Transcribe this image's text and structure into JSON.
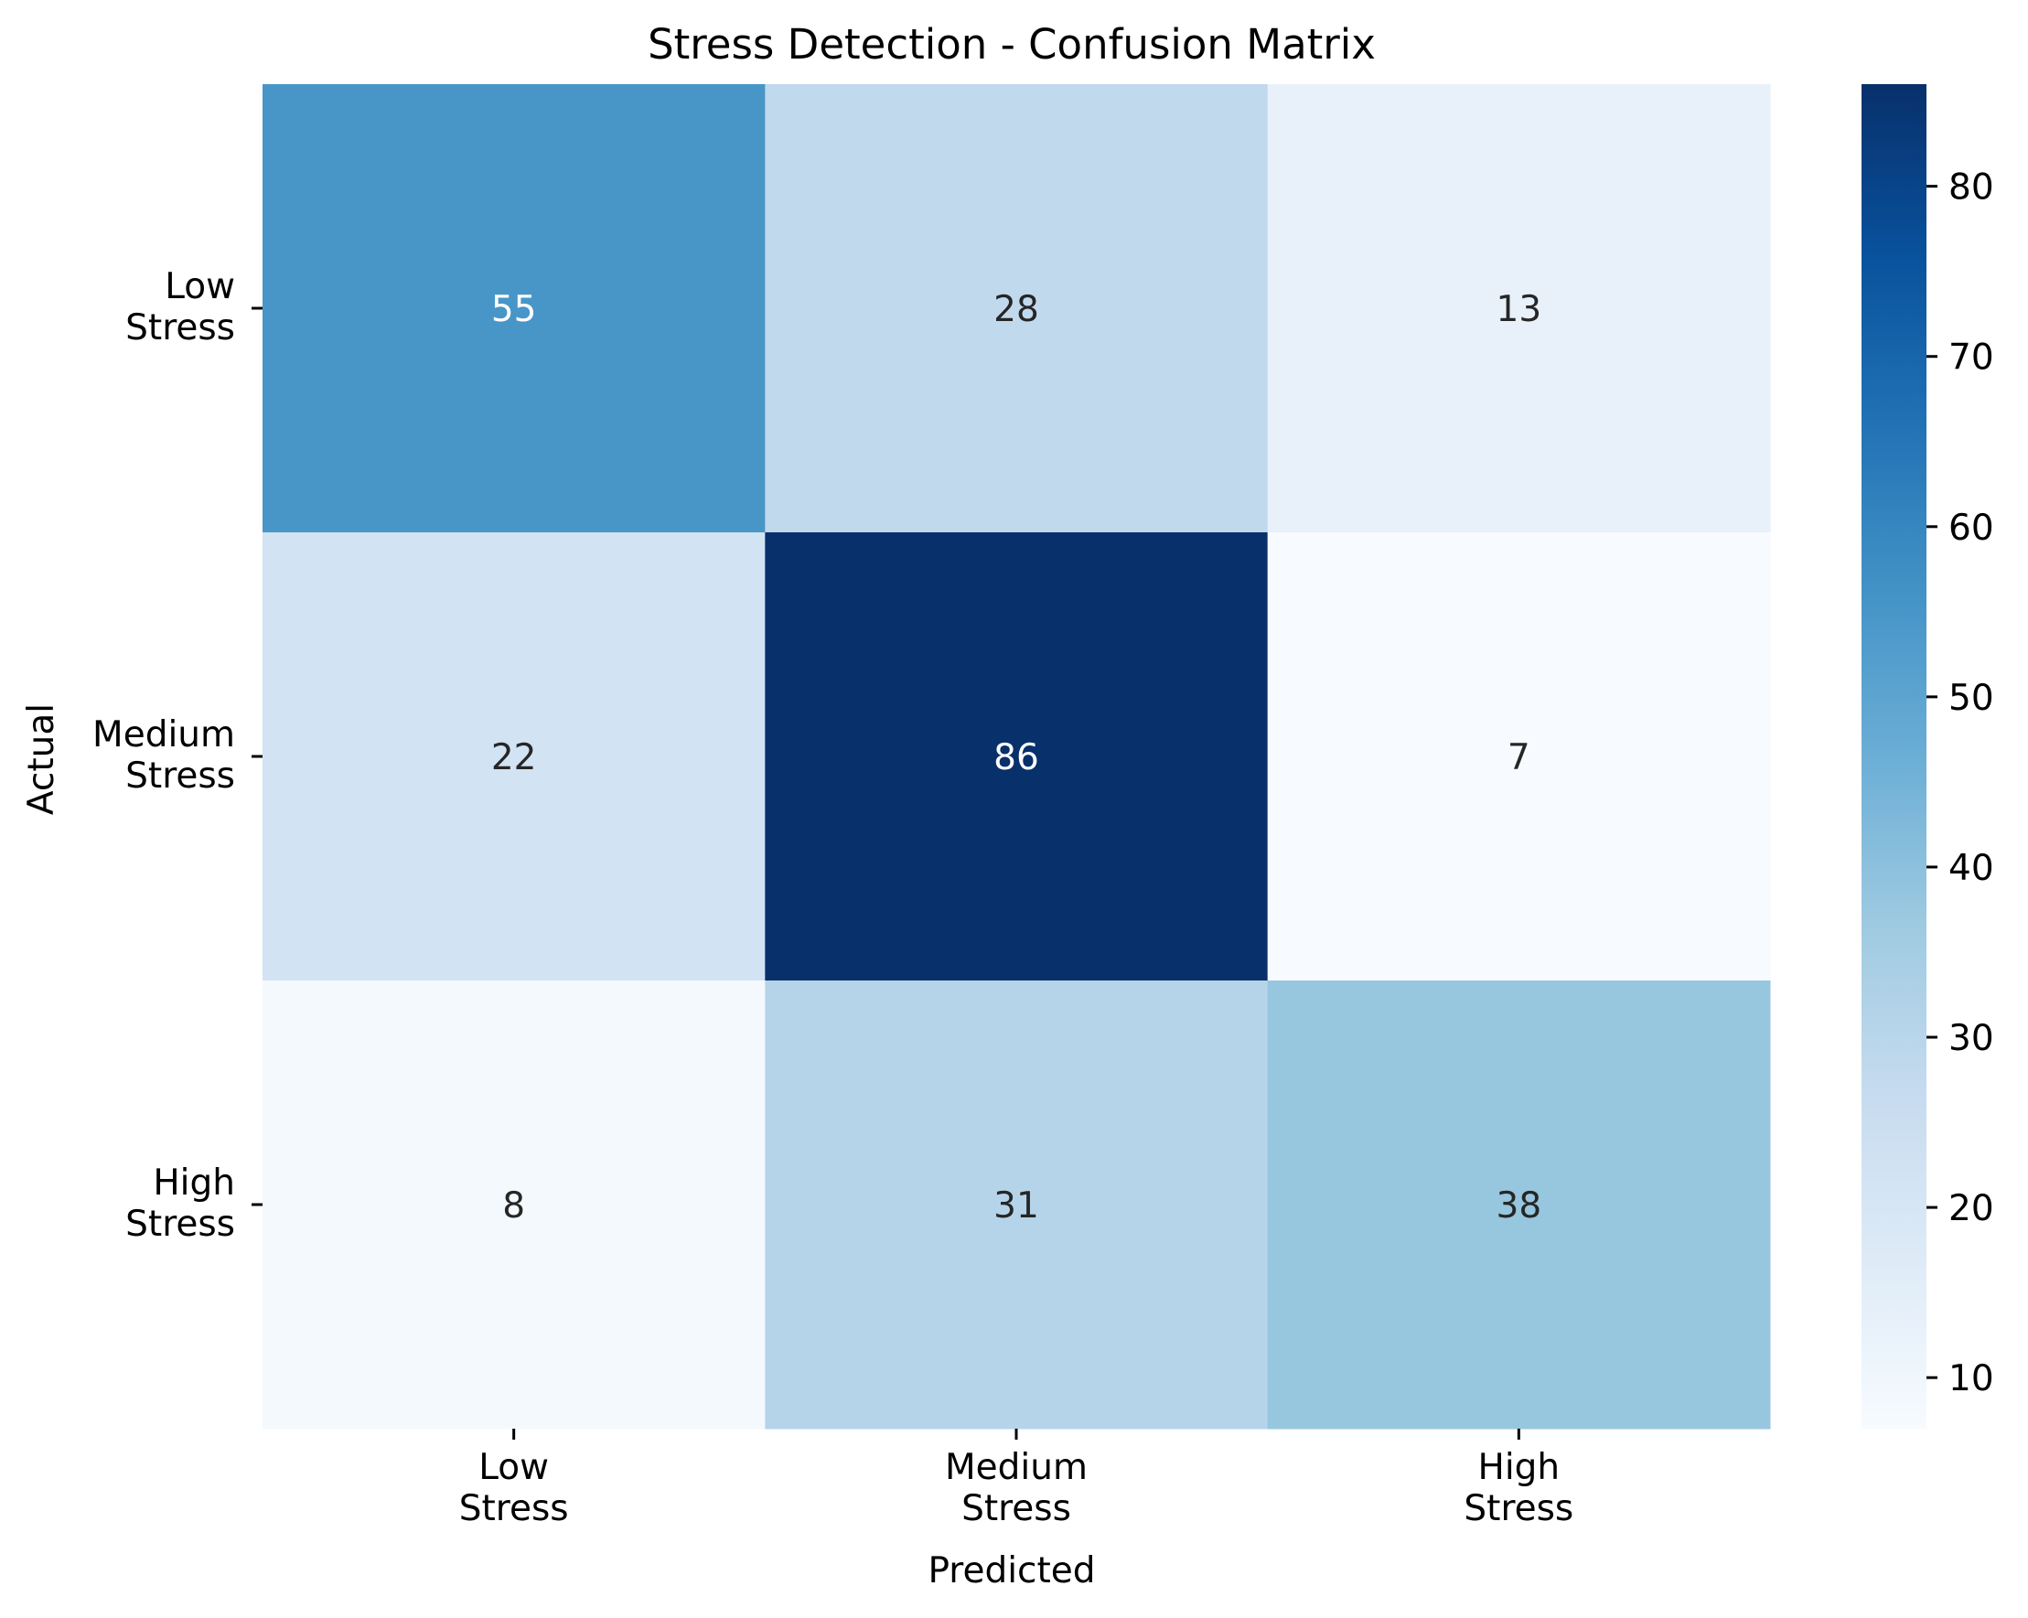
{
  "chart_data": {
    "type": "heatmap",
    "title": "Stress Detection - Confusion Matrix",
    "xlabel": "Predicted",
    "ylabel": "Actual",
    "x_categories": [
      [
        "Low",
        "Stress"
      ],
      [
        "Medium",
        "Stress"
      ],
      [
        "High",
        "Stress"
      ]
    ],
    "y_categories": [
      [
        "Low",
        "Stress"
      ],
      [
        "Medium",
        "Stress"
      ],
      [
        "High",
        "Stress"
      ]
    ],
    "values": [
      [
        55,
        28,
        13
      ],
      [
        22,
        86,
        7
      ],
      [
        8,
        31,
        38
      ]
    ],
    "colormap": "Blues",
    "colorbar": {
      "vmin": 7,
      "vmax": 86,
      "ticks": [
        10,
        20,
        30,
        40,
        50,
        60,
        70,
        80
      ]
    },
    "legend": "none",
    "grid": false
  }
}
